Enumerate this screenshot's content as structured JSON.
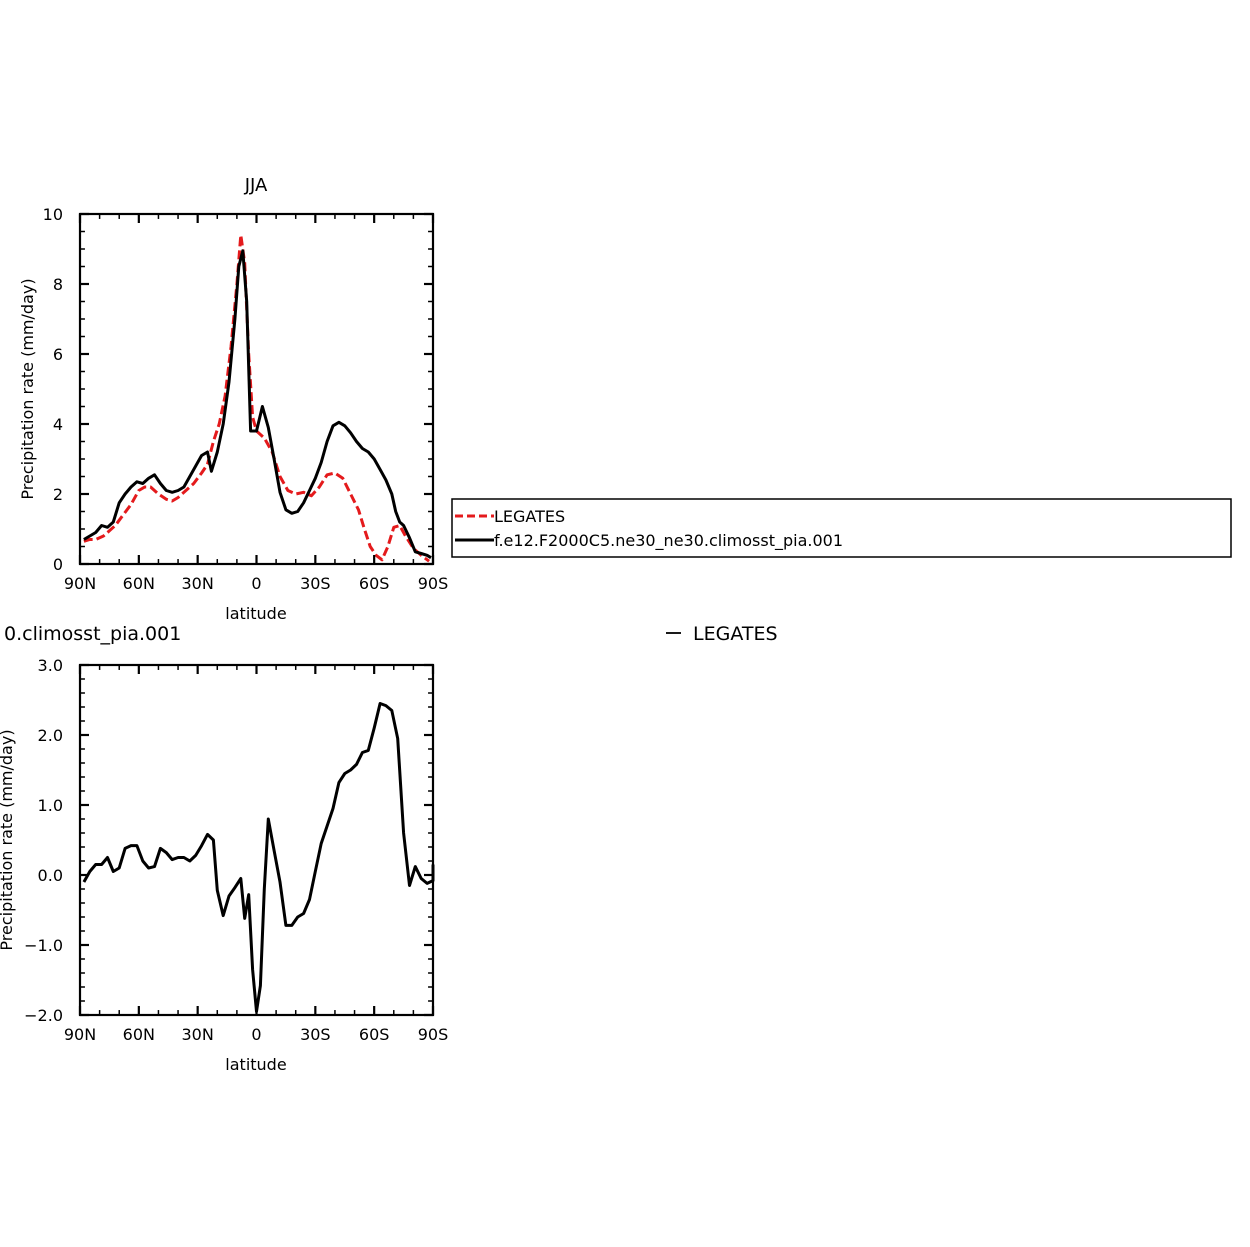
{
  "colors": {
    "legates": "#e41a1c",
    "model": "#000000",
    "background": "#ffffff"
  },
  "chart_data": [
    {
      "type": "line",
      "title": "JJA",
      "xlabel": "latitude",
      "ylabel": "Precipitation rate (mm/day)",
      "xlim": [
        90,
        -90
      ],
      "ylim": [
        0,
        10
      ],
      "x_ticks": [
        90,
        60,
        30,
        0,
        -30,
        -60,
        -90
      ],
      "x_tick_labels": [
        "90N",
        "60N",
        "30N",
        "0",
        "30S",
        "60S",
        "90S"
      ],
      "y_ticks": [
        0,
        2,
        4,
        6,
        8,
        10
      ],
      "y_tick_labels": [
        "0",
        "2",
        "4",
        "6",
        "8",
        "10"
      ],
      "legend": {
        "placement": "right of plot",
        "entries": [
          "LEGATES",
          "f.e12.F2000C5.ne30_ne30.climosst_pia.001"
        ]
      },
      "series": [
        {
          "name": "LEGATES",
          "style": "dashed",
          "color": "#e41a1c",
          "points": [
            [
              88,
              0.65
            ],
            [
              85,
              0.7
            ],
            [
              82,
              0.7
            ],
            [
              78,
              0.8
            ],
            [
              75,
              0.95
            ],
            [
              72,
              1.1
            ],
            [
              68,
              1.4
            ],
            [
              64,
              1.7
            ],
            [
              60,
              2.1
            ],
            [
              57,
              2.2
            ],
            [
              54,
              2.2
            ],
            [
              50,
              2.0
            ],
            [
              46,
              1.85
            ],
            [
              43,
              1.8
            ],
            [
              40,
              1.9
            ],
            [
              36,
              2.1
            ],
            [
              32,
              2.3
            ],
            [
              28,
              2.6
            ],
            [
              25,
              2.85
            ],
            [
              22,
              3.5
            ],
            [
              19,
              4.0
            ],
            [
              16,
              4.8
            ],
            [
              13,
              6.2
            ],
            [
              10,
              8.0
            ],
            [
              8,
              9.4
            ],
            [
              6,
              8.6
            ],
            [
              4,
              6.0
            ],
            [
              2,
              4.2
            ],
            [
              0,
              3.8
            ],
            [
              -4,
              3.6
            ],
            [
              -8,
              3.2
            ],
            [
              -12,
              2.5
            ],
            [
              -16,
              2.1
            ],
            [
              -20,
              2.0
            ],
            [
              -24,
              2.05
            ],
            [
              -28,
              1.95
            ],
            [
              -32,
              2.2
            ],
            [
              -36,
              2.55
            ],
            [
              -40,
              2.6
            ],
            [
              -44,
              2.45
            ],
            [
              -48,
              2.0
            ],
            [
              -52,
              1.55
            ],
            [
              -55,
              1.0
            ],
            [
              -58,
              0.5
            ],
            [
              -61,
              0.25
            ],
            [
              -64,
              0.12
            ],
            [
              -67,
              0.5
            ],
            [
              -70,
              1.05
            ],
            [
              -73,
              1.1
            ],
            [
              -76,
              0.8
            ],
            [
              -80,
              0.45
            ],
            [
              -84,
              0.25
            ],
            [
              -88,
              0.08
            ]
          ]
        },
        {
          "name": "f.e12.F2000C5.ne30_ne30.climosst_pia.001",
          "style": "solid",
          "color": "#000000",
          "points": [
            [
              88,
              0.7
            ],
            [
              85,
              0.8
            ],
            [
              82,
              0.9
            ],
            [
              79,
              1.1
            ],
            [
              76,
              1.05
            ],
            [
              73,
              1.2
            ],
            [
              70,
              1.75
            ],
            [
              67,
              2.0
            ],
            [
              64,
              2.2
            ],
            [
              61,
              2.35
            ],
            [
              58,
              2.3
            ],
            [
              55,
              2.45
            ],
            [
              52,
              2.55
            ],
            [
              49,
              2.3
            ],
            [
              46,
              2.1
            ],
            [
              43,
              2.05
            ],
            [
              40,
              2.1
            ],
            [
              37,
              2.2
            ],
            [
              34,
              2.5
            ],
            [
              31,
              2.8
            ],
            [
              28,
              3.1
            ],
            [
              25,
              3.2
            ],
            [
              23,
              2.65
            ],
            [
              20,
              3.2
            ],
            [
              17,
              4.0
            ],
            [
              14,
              5.2
            ],
            [
              11,
              7.0
            ],
            [
              9,
              8.5
            ],
            [
              7,
              8.95
            ],
            [
              5,
              7.5
            ],
            [
              3,
              3.8
            ],
            [
              0,
              3.8
            ],
            [
              -3,
              4.5
            ],
            [
              -6,
              3.9
            ],
            [
              -9,
              3.0
            ],
            [
              -12,
              2.05
            ],
            [
              -15,
              1.55
            ],
            [
              -18,
              1.45
            ],
            [
              -21,
              1.5
            ],
            [
              -24,
              1.75
            ],
            [
              -27,
              2.1
            ],
            [
              -30,
              2.45
            ],
            [
              -33,
              2.9
            ],
            [
              -36,
              3.5
            ],
            [
              -39,
              3.95
            ],
            [
              -42,
              4.05
            ],
            [
              -45,
              3.95
            ],
            [
              -48,
              3.75
            ],
            [
              -51,
              3.5
            ],
            [
              -54,
              3.3
            ],
            [
              -57,
              3.2
            ],
            [
              -60,
              3.0
            ],
            [
              -63,
              2.7
            ],
            [
              -66,
              2.4
            ],
            [
              -69,
              2.0
            ],
            [
              -71,
              1.5
            ],
            [
              -73,
              1.2
            ],
            [
              -75,
              1.1
            ],
            [
              -78,
              0.75
            ],
            [
              -81,
              0.35
            ],
            [
              -84,
              0.3
            ],
            [
              -87,
              0.25
            ],
            [
              -89,
              0.18
            ]
          ]
        }
      ]
    },
    {
      "type": "line",
      "title": "0.climosst_pia.001",
      "subtitle": "LEGATES",
      "xlabel": "latitude",
      "ylabel": "Precipitation rate (mm/day)",
      "xlim": [
        90,
        -90
      ],
      "ylim": [
        -2,
        3
      ],
      "x_ticks": [
        90,
        60,
        30,
        0,
        -30,
        -60,
        -90
      ],
      "x_tick_labels": [
        "90N",
        "60N",
        "30N",
        "0",
        "30S",
        "60S",
        "90S"
      ],
      "y_ticks": [
        -2,
        -1,
        0,
        1,
        2,
        3
      ],
      "y_tick_labels": [
        "−2.0",
        "−1.0",
        "0.0",
        "1.0",
        "2.0",
        "3.0"
      ],
      "series": [
        {
          "style": "solid",
          "color": "#000000",
          "points": [
            [
              88,
              -0.1
            ],
            [
              85,
              0.05
            ],
            [
              82,
              0.15
            ],
            [
              79,
              0.15
            ],
            [
              76,
              0.25
            ],
            [
              73,
              0.05
            ],
            [
              70,
              0.1
            ],
            [
              67,
              0.38
            ],
            [
              64,
              0.42
            ],
            [
              61,
              0.42
            ],
            [
              58,
              0.2
            ],
            [
              55,
              0.1
            ],
            [
              52,
              0.12
            ],
            [
              49,
              0.38
            ],
            [
              46,
              0.32
            ],
            [
              43,
              0.22
            ],
            [
              40,
              0.25
            ],
            [
              37,
              0.25
            ],
            [
              34,
              0.2
            ],
            [
              31,
              0.28
            ],
            [
              28,
              0.42
            ],
            [
              25,
              0.58
            ],
            [
              22,
              0.5
            ],
            [
              20,
              -0.22
            ],
            [
              17,
              -0.58
            ],
            [
              14,
              -0.3
            ],
            [
              11,
              -0.18
            ],
            [
              8,
              -0.05
            ],
            [
              6,
              -0.62
            ],
            [
              4,
              -0.28
            ],
            [
              2,
              -1.35
            ],
            [
              0,
              -1.95
            ],
            [
              -2,
              -1.58
            ],
            [
              -4,
              -0.2
            ],
            [
              -6,
              0.8
            ],
            [
              -9,
              0.35
            ],
            [
              -12,
              -0.1
            ],
            [
              -15,
              -0.72
            ],
            [
              -18,
              -0.72
            ],
            [
              -21,
              -0.6
            ],
            [
              -24,
              -0.55
            ],
            [
              -27,
              -0.35
            ],
            [
              -30,
              0.05
            ],
            [
              -33,
              0.45
            ],
            [
              -36,
              0.7
            ],
            [
              -39,
              0.95
            ],
            [
              -42,
              1.32
            ],
            [
              -45,
              1.45
            ],
            [
              -48,
              1.5
            ],
            [
              -51,
              1.58
            ],
            [
              -54,
              1.75
            ],
            [
              -57,
              1.78
            ],
            [
              -60,
              2.1
            ],
            [
              -63,
              2.45
            ],
            [
              -66,
              2.42
            ],
            [
              -69,
              2.35
            ],
            [
              -72,
              1.95
            ],
            [
              -75,
              0.6
            ],
            [
              -78,
              -0.15
            ],
            [
              -81,
              0.12
            ],
            [
              -84,
              -0.05
            ],
            [
              -87,
              -0.12
            ],
            [
              -90,
              -0.08
            ],
            [
              -93,
              0.15
            ],
            [
              -95,
              0.15
            ]
          ]
        }
      ]
    }
  ]
}
